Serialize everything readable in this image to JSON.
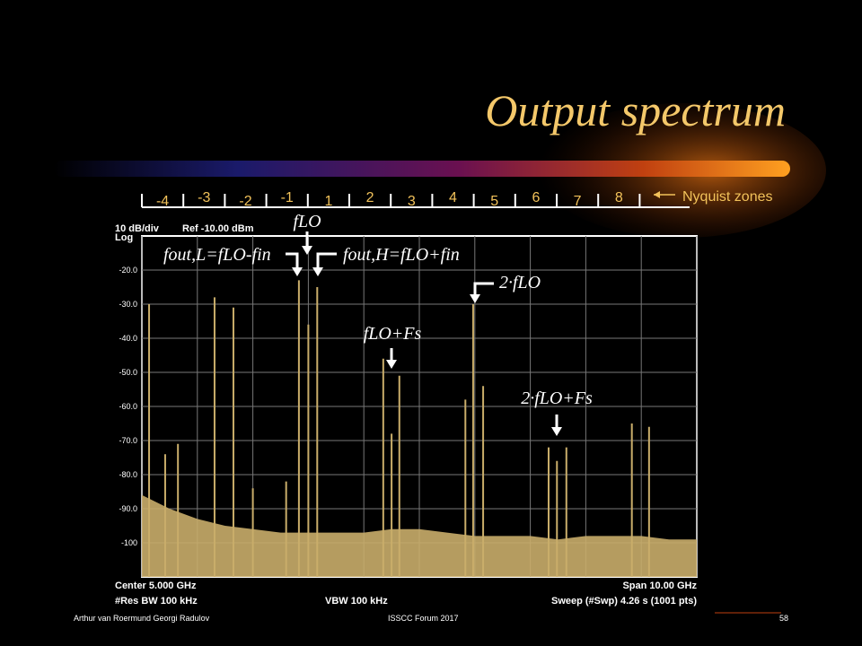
{
  "slide_title": "Output spectrum",
  "footer": {
    "left": "Arthur van Roermund Georgi Radulov",
    "center": "ISSCC  Forum 2017",
    "page": "58"
  },
  "nyquist_zones": {
    "labels": [
      "-4",
      "-3",
      "-2",
      "-1",
      "1",
      "2",
      "3",
      "4",
      "5",
      "6",
      "7",
      "8"
    ],
    "caption": "Nyquist zones"
  },
  "chart_data": {
    "type": "spectrum",
    "scale_label": "10 dB/div",
    "scale_mode": "Log",
    "reference": "Ref -10.00 dBm",
    "xlim": [
      0,
      10
    ],
    "xticks": [
      0,
      1,
      2,
      3,
      4,
      5,
      6,
      7,
      8,
      9,
      10
    ],
    "ylim": [
      -110,
      -10
    ],
    "yticks": [
      {
        "value": -20,
        "label": "-20.0"
      },
      {
        "value": -30,
        "label": "-30.0"
      },
      {
        "value": -40,
        "label": "-40.0"
      },
      {
        "value": -50,
        "label": "-50.0"
      },
      {
        "value": -60,
        "label": "-60.0"
      },
      {
        "value": -70,
        "label": "-70.0"
      },
      {
        "value": -80,
        "label": "-80.0"
      },
      {
        "value": -90,
        "label": "-90.0"
      },
      -100
    ],
    "grid": true,
    "color": "#c9ad6a",
    "peaks": {
      "x": [
        0.13,
        0.42,
        0.65,
        1.31,
        1.65,
        2.0,
        2.6,
        2.83,
        3.0,
        3.16,
        4.35,
        4.5,
        4.64,
        5.83,
        5.97,
        6.15,
        7.33,
        7.48,
        7.65,
        8.83,
        9.14
      ],
      "values": [
        -30,
        -74,
        -71,
        -28,
        -31,
        -84,
        -82,
        -23,
        -36,
        -25,
        -46,
        -68,
        -51,
        -58,
        -30,
        -54,
        -72,
        -76,
        -72,
        -65,
        -66
      ]
    },
    "noise": {
      "x": [
        0,
        0.5,
        1,
        1.5,
        2,
        2.5,
        3,
        3.5,
        4,
        4.5,
        5,
        5.5,
        6,
        6.5,
        7,
        7.5,
        8,
        8.5,
        9,
        9.5,
        10
      ],
      "values": [
        -86,
        -90,
        -93,
        -95,
        -96,
        -97,
        -97,
        -97,
        -97,
        -96,
        -96,
        -97,
        -98,
        -98,
        -98,
        -99,
        -98,
        -98,
        -98,
        -99,
        -99
      ]
    },
    "annotations": [
      "fLO",
      "fout,L=fLO-fin",
      "fout,H=fLO+fin",
      "2·fLO",
      "fLO+Fs",
      "2·fLO+Fs"
    ],
    "footer_left": [
      "Center 5.000 GHz",
      "#Res BW 100 kHz"
    ],
    "footer_center": "VBW 100 kHz",
    "footer_right": [
      "Span 10.00 GHz",
      "Sweep (#Swp)  4.26 s (1001 pts)"
    ]
  }
}
